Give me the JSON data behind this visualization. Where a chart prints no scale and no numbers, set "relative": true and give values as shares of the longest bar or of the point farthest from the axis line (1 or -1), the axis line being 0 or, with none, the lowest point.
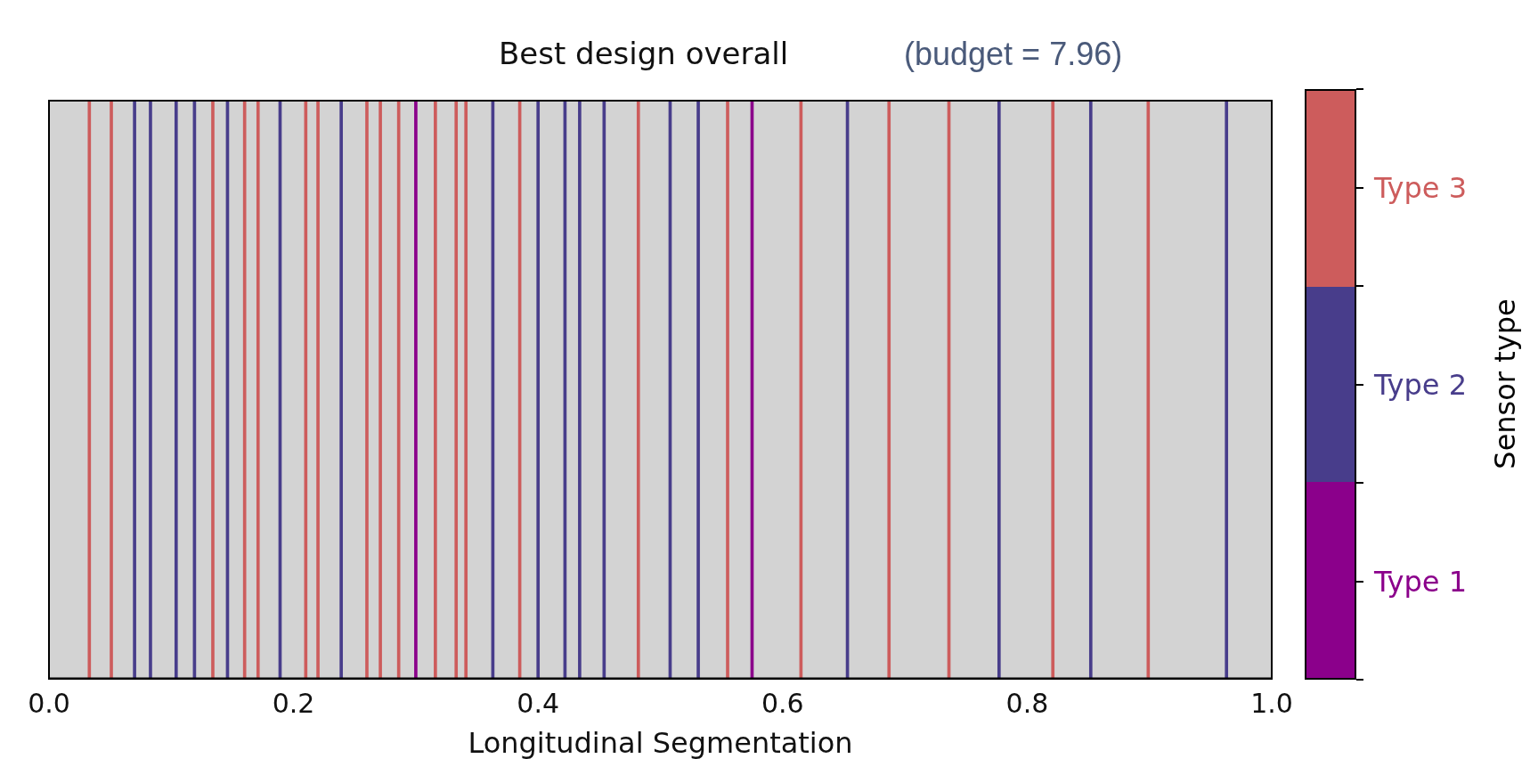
{
  "chart_data": {
    "type": "bar",
    "title": "Best design overall",
    "annotations": [
      "(budget = 7.96)"
    ],
    "xlabel": "Longitudinal Segmentation",
    "legend_title": "Sensor type",
    "legend": "right",
    "relative": true,
    "xlim": [
      0,
      1
    ],
    "xticks": [
      {
        "value": 0,
        "label": "0.0"
      },
      {
        "value": 0.2,
        "label": "0.2"
      },
      {
        "value": 0.4,
        "label": "0.4"
      },
      {
        "value": 0.6,
        "label": "0.6"
      },
      {
        "value": 0.8,
        "label": "0.8"
      },
      {
        "value": 1,
        "label": "1.0"
      }
    ],
    "series": [
      {
        "name": "Type 1",
        "color": "#8b008b",
        "x": [
          0.3,
          0.575
        ],
        "values": [
          1,
          1
        ]
      },
      {
        "name": "Type 2",
        "color": "#483d8b",
        "x": [
          0.07,
          0.083,
          0.104,
          0.119,
          0.146,
          0.189,
          0.239,
          0.363,
          0.4,
          0.422,
          0.434,
          0.454,
          0.508,
          0.531,
          0.653,
          0.777,
          0.852,
          0.963
        ],
        "values": [
          1,
          1,
          1,
          1,
          1,
          1,
          1,
          1,
          1,
          1,
          1,
          1,
          1,
          1,
          1,
          1,
          1,
          1
        ]
      },
      {
        "name": "Type 3",
        "color": "#cd5c5c",
        "x": [
          0.033,
          0.051,
          0.134,
          0.16,
          0.171,
          0.21,
          0.22,
          0.26,
          0.271,
          0.286,
          0.316,
          0.333,
          0.341,
          0.385,
          0.482,
          0.555,
          0.615,
          0.687,
          0.736,
          0.821,
          0.899
        ],
        "values": [
          1,
          1,
          1,
          1,
          1,
          1,
          1,
          1,
          1,
          1,
          1,
          1,
          1,
          1,
          1,
          1,
          1,
          1,
          1,
          1,
          1
        ]
      }
    ]
  }
}
